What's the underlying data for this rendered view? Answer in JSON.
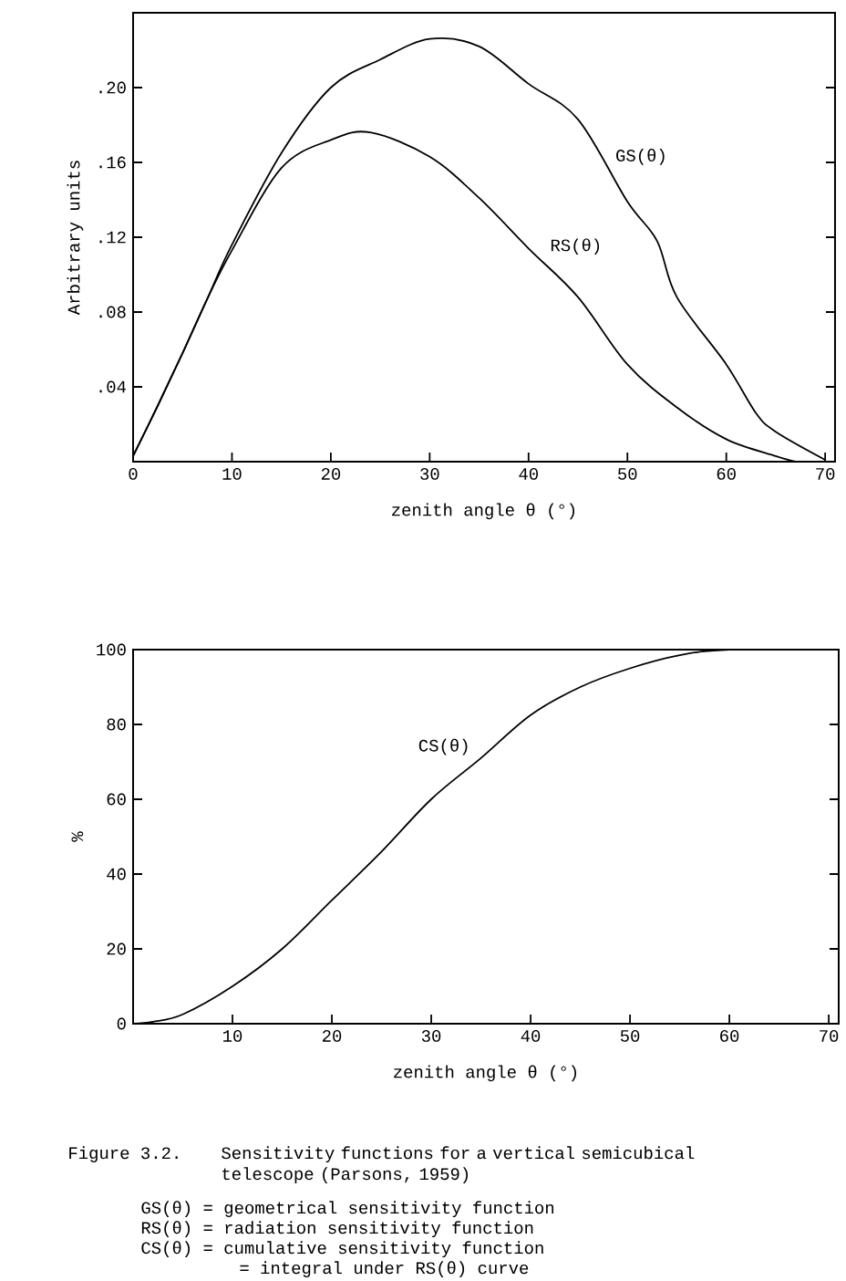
{
  "chart_data": [
    {
      "type": "line",
      "xlabel": "zenith angle θ (°)",
      "ylabel": "Arbitrary units",
      "xlim": [
        0,
        71
      ],
      "ylim": [
        0,
        0.24
      ],
      "xticks": [
        0,
        10,
        20,
        30,
        40,
        50,
        60,
        70
      ],
      "yticks": [
        {
          "value": 0.04,
          "label": ".04"
        },
        {
          "value": 0.08,
          "label": ".08"
        },
        {
          "value": 0.12,
          "label": ".12"
        },
        {
          "value": 0.16,
          "label": ".16"
        },
        {
          "value": 0.2,
          "label": ".20"
        }
      ],
      "series": [
        {
          "name": "GS(θ)",
          "color": "#000000",
          "x": [
            0,
            2.5,
            5,
            7.5,
            10,
            15,
            20,
            25,
            30,
            35,
            40,
            45,
            50,
            53,
            55,
            60,
            63,
            65,
            70
          ],
          "values": [
            0.003,
            0.03,
            0.058,
            0.087,
            0.116,
            0.165,
            0.2,
            0.215,
            0.226,
            0.222,
            0.202,
            0.183,
            0.139,
            0.118,
            0.088,
            0.052,
            0.026,
            0.016,
            0.001
          ]
        },
        {
          "name": "RS(θ)",
          "color": "#000000",
          "x": [
            0,
            2.5,
            5,
            7.5,
            10,
            15,
            20,
            24,
            30,
            35,
            40,
            45,
            50,
            55,
            60,
            65,
            67
          ],
          "values": [
            0.003,
            0.03,
            0.058,
            0.087,
            0.113,
            0.157,
            0.172,
            0.176,
            0.163,
            0.141,
            0.114,
            0.088,
            0.052,
            0.029,
            0.012,
            0.003,
            0
          ]
        }
      ]
    },
    {
      "type": "line",
      "xlabel": "zenith angle θ (°)",
      "ylabel": "%",
      "xlim": [
        0,
        71
      ],
      "ylim": [
        0,
        100
      ],
      "xticks": [
        10,
        20,
        30,
        40,
        50,
        60,
        70
      ],
      "yticks": [
        0,
        20,
        40,
        60,
        80,
        100
      ],
      "series": [
        {
          "name": "CS(θ)",
          "color": "#000000",
          "x": [
            0,
            2,
            5,
            10,
            15,
            20,
            25,
            30,
            35,
            40,
            45,
            50,
            55,
            60,
            70
          ],
          "values": [
            0,
            0.5,
            2.5,
            10,
            20,
            33,
            46,
            60,
            71,
            82.5,
            90,
            95,
            98.5,
            100,
            100
          ]
        }
      ],
      "annotations": [
        "Figure 3.2.",
        "Sensitivity functions for a vertical semicubical telescope (Parsons, 1959)",
        "GS(θ) = geometrical sensitivity function",
        "RS(θ) = radiation sensitivity function",
        "CS(θ) = cumulative sensitivity function",
        "= integral under RS(θ) curve"
      ]
    }
  ]
}
